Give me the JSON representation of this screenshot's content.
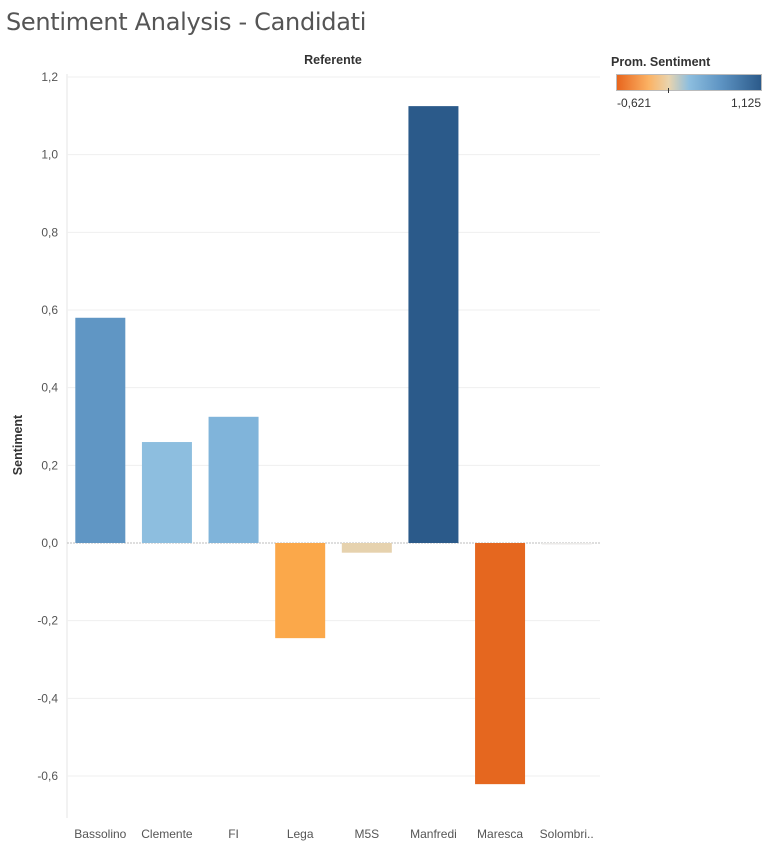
{
  "title": "Sentiment Analysis - Candidati",
  "legend": {
    "title": "Prom. Sentiment",
    "min_label": "-0,621",
    "max_label": "1,125",
    "colors": [
      "#e8651d",
      "#fbb264",
      "#e9d4ae",
      "#8dbedf",
      "#5e94c3",
      "#2b5a8a"
    ]
  },
  "chart_data": {
    "type": "bar",
    "title": "Sentiment Analysis - Candidati",
    "header": "Referente",
    "ylabel": "Sentiment",
    "xlabel": "",
    "ylim": [
      -0.7,
      1.2
    ],
    "yticks": [
      1.2,
      1.0,
      0.8,
      0.6,
      0.4,
      0.2,
      0.0,
      -0.2,
      -0.4,
      -0.6
    ],
    "ytick_labels": [
      "1,2",
      "1,0",
      "0,8",
      "0,6",
      "0,4",
      "0,2",
      "0,0",
      "-0,2",
      "-0,4",
      "-0,6"
    ],
    "grid": true,
    "legend_position": "top-right",
    "categories": [
      "Bassolino",
      "Clemente",
      "FI",
      "Lega",
      "M5S",
      "Manfredi",
      "Maresca",
      "Solombri.."
    ],
    "values": [
      0.58,
      0.26,
      0.325,
      -0.245,
      -0.025,
      1.125,
      -0.621,
      0.0
    ],
    "colors": [
      "#6096c4",
      "#8dbedf",
      "#80b4da",
      "#fba84a",
      "#e6d2ae",
      "#2b5a8a",
      "#e5671f",
      "#ebeae8"
    ]
  }
}
